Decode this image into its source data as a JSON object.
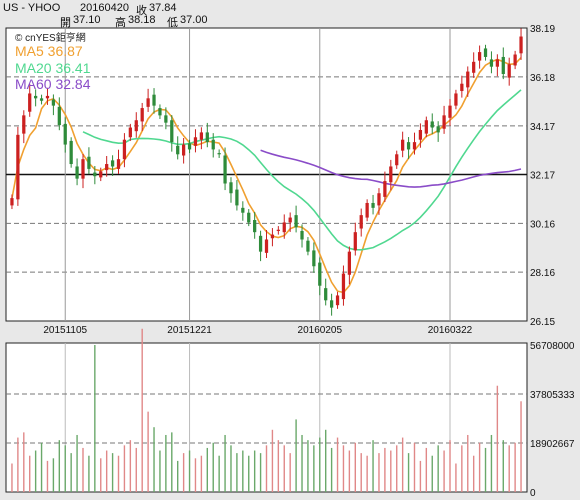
{
  "header": {
    "symbol": "US - YHOO",
    "date": "20160420",
    "close_label": "收",
    "close": "37.84",
    "open_label": "開",
    "open": "37.10",
    "high_label": "高",
    "high": "38.18",
    "low_label": "低",
    "low": "37.00"
  },
  "legend": {
    "copyright": "© cnYES鉅亨網",
    "ma5": "MA5 36.87",
    "ma20": "MA20 36.41",
    "ma60": "MA60 32.84"
  },
  "colors": {
    "up": "#cc2020",
    "down": "#2e8b3a",
    "ma5": "#f0a030",
    "ma20": "#50d890",
    "ma60": "#8a4cc8",
    "vol_up": "#e08888",
    "vol_down": "#6aa86a"
  },
  "chart_data": [
    {
      "type": "candlestick",
      "title": "",
      "ylim": [
        26.15,
        38.19
      ],
      "y_ticks": [
        "38.19",
        "36.18",
        "34.17",
        "32.17",
        "30.16",
        "28.16",
        "26.15"
      ],
      "x_ticks": [
        "20151105",
        "20151221",
        "20160205",
        "20160322"
      ],
      "reference_line": 32.17,
      "closes": [
        31.2,
        33.8,
        34.6,
        35.5,
        35.3,
        35.2,
        35.4,
        35.0,
        34.2,
        33.4,
        32.6,
        32.0,
        32.8,
        32.4,
        32.1,
        32.3,
        32.6,
        32.5,
        32.8,
        33.6,
        34.1,
        34.4,
        34.9,
        35.3,
        35.0,
        34.6,
        34.3,
        33.5,
        33.0,
        33.4,
        33.2,
        33.7,
        33.9,
        33.5,
        33.2,
        33.0,
        31.8,
        31.4,
        30.9,
        30.6,
        30.2,
        29.8,
        29.0,
        29.5,
        29.7,
        29.9,
        30.2,
        30.4,
        30.0,
        29.5,
        29.0,
        28.4,
        27.6,
        27.0,
        26.7,
        27.2,
        28.1,
        29.0,
        29.8,
        30.5,
        31.0,
        30.8,
        31.4,
        31.9,
        32.5,
        33.0,
        33.6,
        33.2,
        33.5,
        34.0,
        34.4,
        34.1,
        33.9,
        34.6,
        35.0,
        35.5,
        35.9,
        36.4,
        36.8,
        37.2,
        37.0,
        36.6,
        36.9,
        36.3,
        36.7,
        37.1,
        37.84
      ],
      "ma5_last": 36.87,
      "ma20_last": 36.41,
      "ma60_last": 32.84
    },
    {
      "type": "bar",
      "title": "",
      "ylim": [
        0,
        56708000
      ],
      "y_ticks": [
        "56708000",
        "37805333",
        "18902667",
        "0"
      ],
      "values": [
        11000000,
        21000000,
        23000000,
        14000000,
        16000000,
        19000000,
        12000000,
        13000000,
        20000000,
        18000000,
        15000000,
        22000000,
        17000000,
        14000000,
        56708000,
        13000000,
        16000000,
        15000000,
        14000000,
        18000000,
        20000000,
        17000000,
        63000000,
        31000000,
        25000000,
        16000000,
        22000000,
        23000000,
        12000000,
        15000000,
        16000000,
        13000000,
        14000000,
        17000000,
        19000000,
        14000000,
        22000000,
        18000000,
        15000000,
        16000000,
        14000000,
        16000000,
        15000000,
        18000000,
        24000000,
        20000000,
        18000000,
        15000000,
        28000000,
        22000000,
        20000000,
        18000000,
        21000000,
        24000000,
        17000000,
        21000000,
        18000000,
        16000000,
        19000000,
        15000000,
        14000000,
        20000000,
        15000000,
        17000000,
        16000000,
        18000000,
        21000000,
        15000000,
        19000000,
        12000000,
        17000000,
        14000000,
        18000000,
        16000000,
        20000000,
        11000000,
        18000000,
        22000000,
        14000000,
        19000000,
        17000000,
        22000000,
        41000000,
        20000000,
        18000000,
        19000000,
        35000000
      ]
    }
  ]
}
